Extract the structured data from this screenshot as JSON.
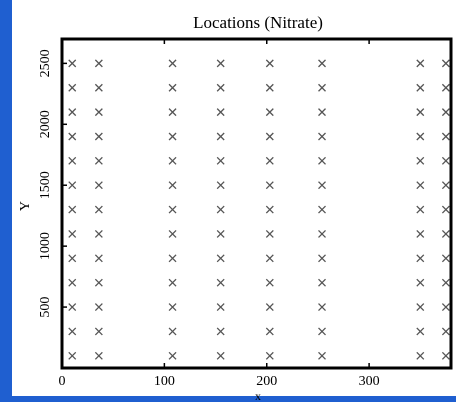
{
  "chart_data": {
    "type": "scatter",
    "title": "Locations (Nitrate)",
    "x_label": "x",
    "y_label": "Y",
    "x": [
      10,
      10,
      10,
      10,
      10,
      10,
      10,
      10,
      10,
      10,
      10,
      10,
      10,
      36,
      36,
      36,
      36,
      36,
      36,
      36,
      36,
      36,
      36,
      36,
      36,
      36,
      108,
      108,
      108,
      108,
      108,
      108,
      108,
      108,
      108,
      108,
      108,
      108,
      108,
      155,
      155,
      155,
      155,
      155,
      155,
      155,
      155,
      155,
      155,
      155,
      155,
      155,
      203,
      203,
      203,
      203,
      203,
      203,
      203,
      203,
      203,
      203,
      203,
      203,
      203,
      254,
      254,
      254,
      254,
      254,
      254,
      254,
      254,
      254,
      254,
      254,
      254,
      254,
      350,
      350,
      350,
      350,
      350,
      350,
      350,
      350,
      350,
      350,
      350,
      350,
      350,
      375,
      375,
      375,
      375,
      375,
      375,
      375,
      375,
      375,
      375,
      375,
      375,
      375
    ],
    "values": [
      100,
      300,
      500,
      700,
      900,
      1100,
      1300,
      1500,
      1700,
      1900,
      2100,
      2300,
      2500,
      100,
      300,
      500,
      700,
      900,
      1100,
      1300,
      1500,
      1700,
      1900,
      2100,
      2300,
      2500,
      100,
      300,
      500,
      700,
      900,
      1100,
      1300,
      1500,
      1700,
      1900,
      2100,
      2300,
      2500,
      100,
      300,
      500,
      700,
      900,
      1100,
      1300,
      1500,
      1700,
      1900,
      2100,
      2300,
      2500,
      100,
      300,
      500,
      700,
      900,
      1100,
      1300,
      1500,
      1700,
      1900,
      2100,
      2300,
      2500,
      100,
      300,
      500,
      700,
      900,
      1100,
      1300,
      1500,
      1700,
      1900,
      2100,
      2300,
      2500,
      100,
      300,
      500,
      700,
      900,
      1100,
      1300,
      1500,
      1700,
      1900,
      2100,
      2300,
      2500,
      100,
      300,
      500,
      700,
      900,
      1100,
      1300,
      1500,
      1700,
      1900,
      2100,
      2300,
      2500
    ],
    "xlim": [
      0,
      380
    ],
    "ylim": [
      0,
      2700
    ],
    "xticks": [
      0,
      100,
      200,
      300
    ],
    "yticks": [
      500,
      1000,
      1500,
      2000,
      2500
    ],
    "marker": "x",
    "color": "#555555"
  }
}
